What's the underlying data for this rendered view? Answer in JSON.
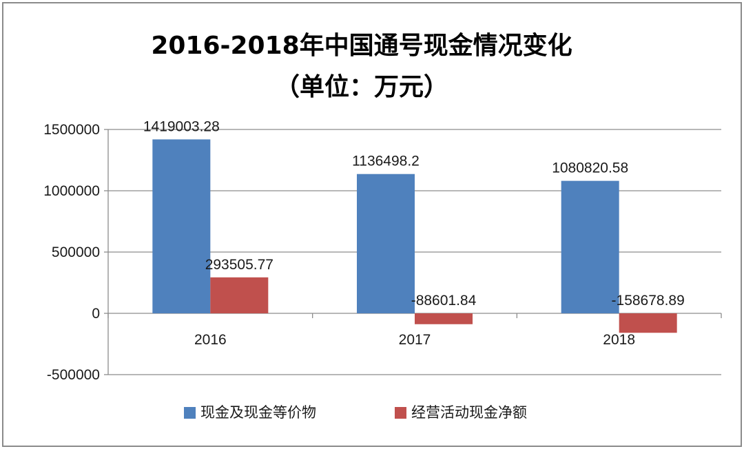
{
  "chart_data": {
    "type": "bar",
    "title": "2016-2018年中国通号现金情况变化",
    "subtitle": "（单位：万元）",
    "categories": [
      "2016",
      "2017",
      "2018"
    ],
    "series": [
      {
        "name": "现金及现金等价物",
        "color": "#4f81bd",
        "values": [
          1419003.28,
          1136498.2,
          1080820.58
        ],
        "labels": [
          "1419003.28",
          "1136498.2",
          "1080820.58"
        ]
      },
      {
        "name": "经营活动现金净额",
        "color": "#c0504d",
        "values": [
          293505.77,
          -88601.84,
          -158678.89
        ],
        "labels": [
          "293505.77",
          "-88601.84",
          "-158678.89"
        ]
      }
    ],
    "ylim": [
      -500000,
      1500000
    ],
    "yticks": [
      1500000,
      1000000,
      500000,
      0,
      -500000
    ],
    "ytick_labels": [
      "1500000",
      "1000000",
      "500000",
      "0",
      "-500000"
    ],
    "grid": true,
    "legend_position": "bottom"
  }
}
